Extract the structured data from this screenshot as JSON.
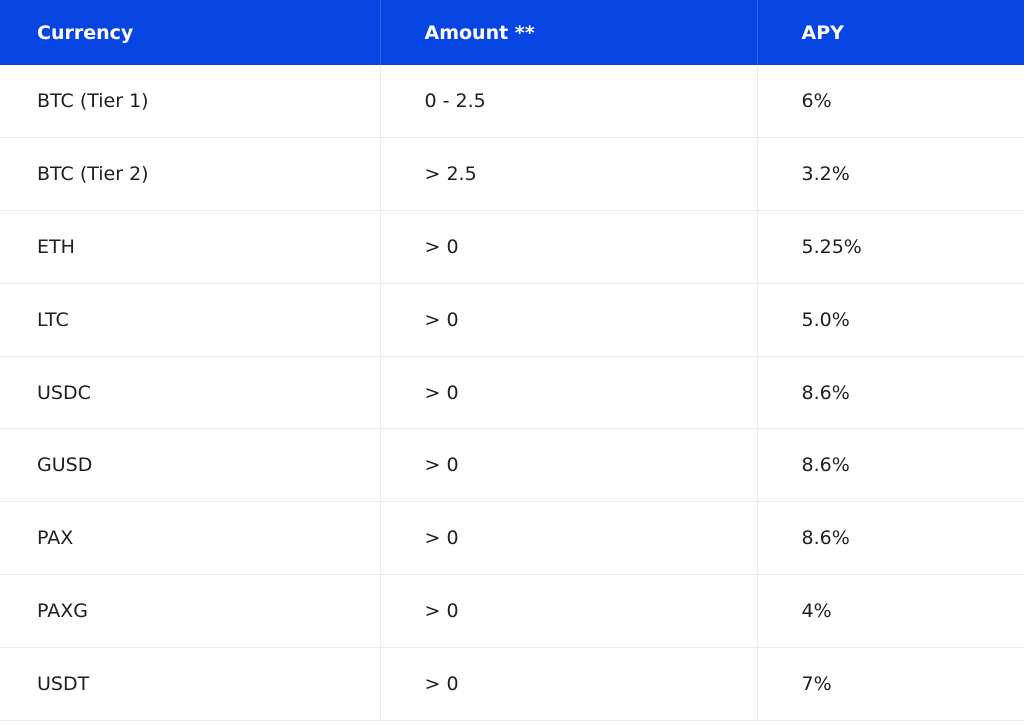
{
  "table": {
    "headers": [
      "Currency",
      "Amount **",
      "APY"
    ],
    "rows": [
      {
        "currency": "BTC (Tier 1)",
        "amount": "0 - 2.5",
        "apy": "6%"
      },
      {
        "currency": "BTC (Tier 2)",
        "amount": "> 2.5",
        "apy": "3.2%"
      },
      {
        "currency": "ETH",
        "amount": "> 0",
        "apy": "5.25%"
      },
      {
        "currency": "LTC",
        "amount": "> 0",
        "apy": "5.0%"
      },
      {
        "currency": "USDC",
        "amount": "> 0",
        "apy": "8.6%"
      },
      {
        "currency": "GUSD",
        "amount": "> 0",
        "apy": "8.6%"
      },
      {
        "currency": "PAX",
        "amount": "> 0",
        "apy": "8.6%"
      },
      {
        "currency": "PAXG",
        "amount": "> 0",
        "apy": "4%"
      },
      {
        "currency": "USDT",
        "amount": "> 0",
        "apy": "7%"
      }
    ]
  },
  "colors": {
    "header_background": "#0745e3",
    "header_text": "#ffffff",
    "body_text": "#1e1e24",
    "grid_line": "#ececec"
  }
}
